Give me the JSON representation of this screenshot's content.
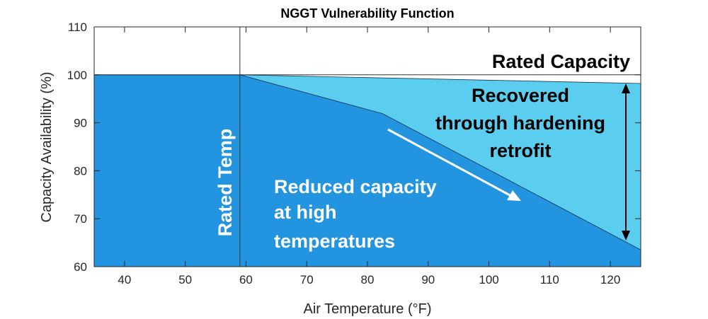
{
  "chart_data": {
    "type": "area",
    "title": "NGGT Vulnerability Function",
    "xlabel": "Air Temperature (°F)",
    "xlabel_parts": {
      "pre": "Air Temperature (",
      "sup": "o",
      "post": "F)"
    },
    "ylabel": "Capacity Availability (%)",
    "xlim": [
      35,
      125
    ],
    "ylim": [
      60,
      110
    ],
    "xticks": [
      40,
      50,
      60,
      70,
      80,
      90,
      100,
      110,
      120
    ],
    "yticks": [
      60,
      70,
      80,
      90,
      100,
      110
    ],
    "grid": false,
    "series": [
      {
        "name": "Reduced capacity at high temperatures",
        "color": "#2394e0",
        "x": [
          35,
          59,
          82.5,
          125
        ],
        "y": [
          100,
          100,
          91.9,
          63.5
        ]
      },
      {
        "name": "Recovered through hardening retrofit",
        "color": "#5bcdee",
        "x": [
          59,
          125
        ],
        "y": [
          100,
          98.2
        ]
      }
    ],
    "reference_lines": [
      {
        "type": "horizontal",
        "value": 100,
        "label": "Rated Capacity"
      },
      {
        "type": "vertical",
        "value": 59,
        "label": "Rated Temp"
      }
    ],
    "annotations": {
      "reduced": [
        "Reduced capacity",
        "at high",
        "temperatures"
      ],
      "recovered": [
        "Recovered",
        "through hardening",
        "retrofit"
      ]
    }
  }
}
